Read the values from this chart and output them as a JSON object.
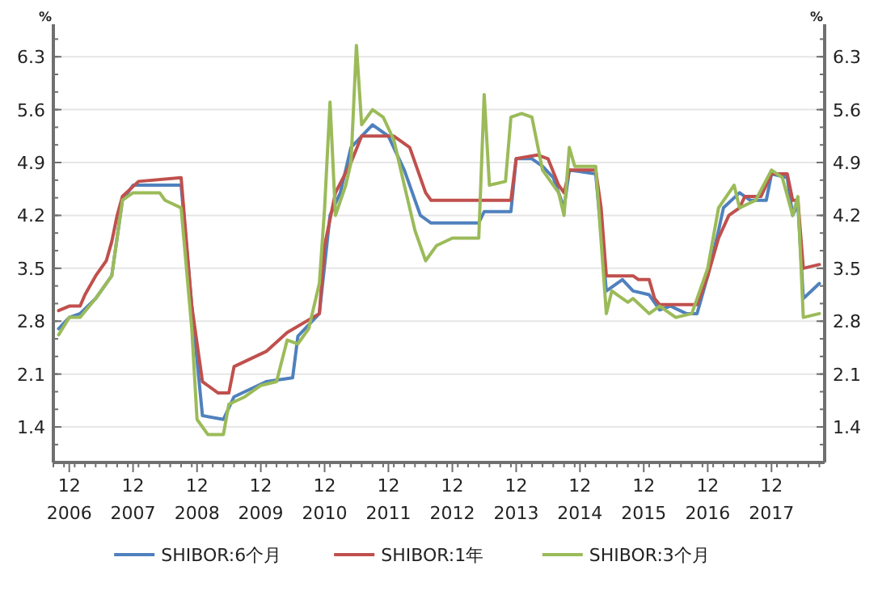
{
  "chart_data": {
    "type": "line",
    "ylabel": "%",
    "y2label": "%",
    "xlim": [
      "2006-09",
      "2018-10"
    ],
    "xticks": [
      {
        "value": "2006-12",
        "label": "12\n2006"
      },
      {
        "value": "2007-12",
        "label": "12\n2007"
      },
      {
        "value": "2008-12",
        "label": "12\n2008"
      },
      {
        "value": "2009-12",
        "label": "12\n2009"
      },
      {
        "value": "2010-12",
        "label": "12\n2010"
      },
      {
        "value": "2011-12",
        "label": "12\n2011"
      },
      {
        "value": "2012-12",
        "label": "12\n2012"
      },
      {
        "value": "2013-12",
        "label": "12\n2013"
      },
      {
        "value": "2014-12",
        "label": "12\n2014"
      },
      {
        "value": "2015-12",
        "label": "12\n2015"
      },
      {
        "value": "2016-12",
        "label": "12\n2016"
      },
      {
        "value": "2017-12",
        "label": "12\n2017"
      }
    ],
    "ylim": [
      0.93,
      6.73
    ],
    "yticks": [
      1.4,
      2.1,
      2.8,
      3.5,
      4.2,
      4.9,
      5.6,
      6.3
    ],
    "y2lim": [
      0.93,
      6.73
    ],
    "y2ticks": [
      1.4,
      2.1,
      2.8,
      3.5,
      4.2,
      4.9,
      5.6,
      6.3
    ],
    "grid": "y",
    "legend": "bottom",
    "line_style": "solid",
    "marker": "none",
    "series": [
      {
        "name": "SHIBOR:6个月",
        "color": "#4f81bd",
        "x": [
          "2006-10",
          "2006-12",
          "2007-02",
          "2007-05",
          "2007-08",
          "2007-10",
          "2007-12",
          "2008-09",
          "2008-11",
          "2009-01",
          "2009-05",
          "2009-07",
          "2010-01",
          "2010-06",
          "2010-07",
          "2010-11",
          "2011-01",
          "2011-03",
          "2011-05",
          "2011-09",
          "2011-12",
          "2012-03",
          "2012-06",
          "2012-08",
          "2013-05",
          "2013-06",
          "2013-11",
          "2013-12",
          "2014-03",
          "2014-05",
          "2014-07",
          "2014-09",
          "2014-10",
          "2015-03",
          "2015-05",
          "2015-08",
          "2015-10",
          "2016-01",
          "2016-03",
          "2016-05",
          "2016-08",
          "2016-10",
          "2016-12",
          "2017-02",
          "2017-03",
          "2017-06",
          "2017-08",
          "2017-11",
          "2017-12",
          "2018-03",
          "2018-04",
          "2018-05",
          "2018-06",
          "2018-09"
        ],
        "values": [
          2.7,
          2.85,
          2.9,
          3.1,
          3.4,
          4.4,
          4.6,
          4.6,
          3.0,
          1.55,
          1.5,
          1.8,
          2.0,
          2.05,
          2.6,
          2.9,
          4.2,
          4.5,
          5.1,
          5.4,
          5.25,
          4.8,
          4.2,
          4.1,
          4.1,
          4.25,
          4.25,
          4.95,
          4.95,
          4.85,
          4.7,
          4.3,
          4.8,
          4.75,
          3.2,
          3.35,
          3.2,
          3.15,
          2.95,
          3.0,
          2.9,
          2.9,
          3.4,
          4.0,
          4.3,
          4.5,
          4.4,
          4.4,
          4.75,
          4.7,
          4.2,
          4.35,
          3.1,
          3.3
        ]
      },
      {
        "name": "SHIBOR:1年",
        "color": "#c0504d",
        "x": [
          "2006-10",
          "2006-12",
          "2007-02",
          "2007-03",
          "2007-05",
          "2007-07",
          "2007-08",
          "2007-09",
          "2007-10",
          "2008-01",
          "2008-09",
          "2008-11",
          "2009-01",
          "2009-04",
          "2009-06",
          "2009-07",
          "2010-01",
          "2010-05",
          "2010-11",
          "2010-12",
          "2011-02",
          "2011-05",
          "2011-07",
          "2012-01",
          "2012-04",
          "2012-07",
          "2012-08",
          "2013-11",
          "2013-12",
          "2014-04",
          "2014-06",
          "2014-08",
          "2014-09",
          "2014-10",
          "2015-03",
          "2015-04",
          "2015-05",
          "2015-10",
          "2015-11",
          "2016-01",
          "2016-02",
          "2016-03",
          "2016-10",
          "2016-12",
          "2017-02",
          "2017-04",
          "2017-06",
          "2017-07",
          "2017-10",
          "2017-12",
          "2018-03",
          "2018-04",
          "2018-05",
          "2018-06",
          "2018-09"
        ],
        "values": [
          2.94,
          3.0,
          3.0,
          3.15,
          3.4,
          3.6,
          3.85,
          4.2,
          4.45,
          4.65,
          4.7,
          3.0,
          2.0,
          1.85,
          1.85,
          2.2,
          2.4,
          2.65,
          2.9,
          3.8,
          4.5,
          4.9,
          5.25,
          5.25,
          5.1,
          4.5,
          4.4,
          4.4,
          4.95,
          5.0,
          4.95,
          4.6,
          4.5,
          4.8,
          4.8,
          4.3,
          3.4,
          3.4,
          3.35,
          3.35,
          3.1,
          3.02,
          3.02,
          3.4,
          3.9,
          4.2,
          4.3,
          4.45,
          4.45,
          4.75,
          4.75,
          4.4,
          4.4,
          3.5,
          3.55
        ]
      },
      {
        "name": "SHIBOR:3个月",
        "color": "#9bbb59",
        "x": [
          "2006-10",
          "2006-12",
          "2007-02",
          "2007-05",
          "2007-08",
          "2007-10",
          "2007-12",
          "2008-05",
          "2008-06",
          "2008-09",
          "2008-11",
          "2008-12",
          "2009-02",
          "2009-05",
          "2009-06",
          "2009-09",
          "2009-12",
          "2010-03",
          "2010-05",
          "2010-07",
          "2010-09",
          "2010-11",
          "2010-12",
          "2011-01",
          "2011-02",
          "2011-04",
          "2011-05",
          "2011-06",
          "2011-07",
          "2011-09",
          "2011-11",
          "2012-01",
          "2012-03",
          "2012-05",
          "2012-07",
          "2012-09",
          "2012-12",
          "2013-05",
          "2013-06",
          "2013-07",
          "2013-10",
          "2013-11",
          "2014-01",
          "2014-03",
          "2014-05",
          "2014-08",
          "2014-09",
          "2014-10",
          "2014-11",
          "2015-03",
          "2015-05",
          "2015-06",
          "2015-09",
          "2015-10",
          "2016-01",
          "2016-03",
          "2016-06",
          "2016-09",
          "2016-12",
          "2017-02",
          "2017-05",
          "2017-06",
          "2017-09",
          "2017-12",
          "2018-02",
          "2018-04",
          "2018-05",
          "2018-06",
          "2018-09"
        ],
        "values": [
          2.62,
          2.85,
          2.85,
          3.1,
          3.4,
          4.4,
          4.5,
          4.5,
          4.4,
          4.3,
          2.7,
          1.5,
          1.3,
          1.3,
          1.7,
          1.8,
          1.95,
          2.0,
          2.55,
          2.5,
          2.7,
          3.3,
          4.3,
          5.7,
          4.2,
          4.6,
          4.9,
          6.45,
          5.4,
          5.6,
          5.5,
          5.2,
          4.6,
          4.0,
          3.6,
          3.8,
          3.9,
          3.9,
          5.8,
          4.6,
          4.65,
          5.5,
          5.55,
          5.5,
          4.8,
          4.5,
          4.2,
          5.1,
          4.85,
          4.85,
          2.9,
          3.2,
          3.05,
          3.1,
          2.9,
          3.0,
          2.85,
          2.9,
          3.5,
          4.3,
          4.6,
          4.3,
          4.4,
          4.8,
          4.7,
          4.2,
          4.45,
          2.85,
          2.9
        ]
      }
    ]
  }
}
